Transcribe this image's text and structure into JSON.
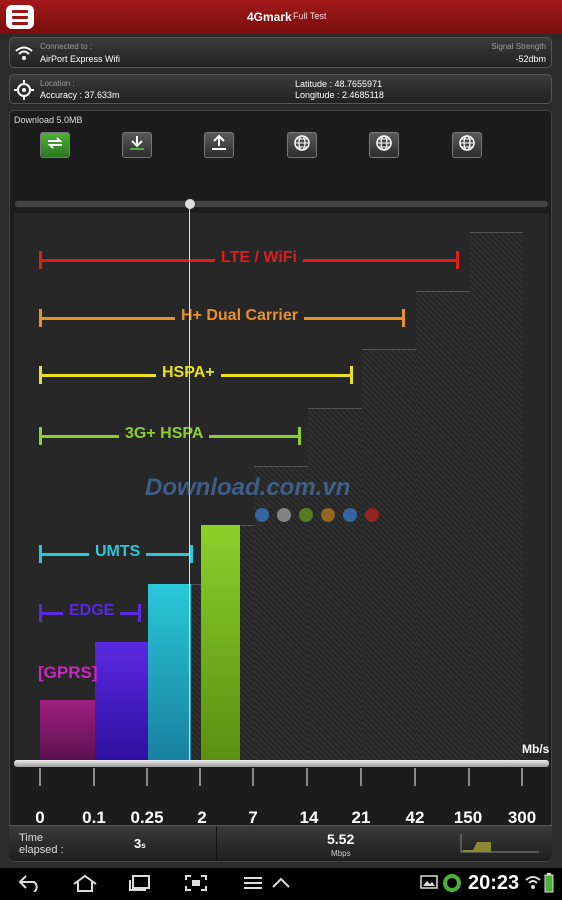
{
  "app": {
    "title": "4Gmark",
    "subtitle": "Full Test"
  },
  "connection": {
    "label": "Connected to :",
    "network": "AirPort Express Wifi",
    "signal_label": "Signal Strength",
    "signal_value": "-52dbm"
  },
  "location": {
    "label": "Location :",
    "accuracy": "Accuracy : 37.633m",
    "latitude": "Latitude : 48.7655971",
    "longitude": "Longitude : 2.4685118"
  },
  "test": {
    "download_label": "Download",
    "download_size": "5.0MB"
  },
  "toolbar": {
    "icons": [
      "repeat-icon",
      "download-icon",
      "upload-icon",
      "globe-icon",
      "globe-icon",
      "globe-icon"
    ]
  },
  "chart_data": {
    "type": "bar",
    "ylabel": "Mb/s",
    "ticks": [
      "0",
      "0.1",
      "0.25",
      "2",
      "7",
      "14",
      "21",
      "42",
      "150",
      "300"
    ],
    "bands": [
      {
        "label": "LTE / WiFi",
        "color": "#e01c1c"
      },
      {
        "label": "H+ Dual Carrier",
        "color": "#e8902a"
      },
      {
        "label": "HSPA+",
        "color": "#e8e020"
      },
      {
        "label": "3G+ HSPA",
        "color": "#8ccf2a"
      },
      {
        "label": "UMTS",
        "color": "#2ac8d8"
      },
      {
        "label": "EDGE",
        "color": "#5a2ae0"
      },
      {
        "label": "[GPRS]",
        "color": "#c828c0"
      }
    ],
    "current_value": 5.52
  },
  "watermark": {
    "text": "Download.com.vn"
  },
  "status": {
    "time_label": "Time\nelapsed :",
    "time_value": "3",
    "time_unit": "s",
    "speed_value": "5.52",
    "speed_unit": "Mbps"
  },
  "system": {
    "time": "20:23"
  }
}
